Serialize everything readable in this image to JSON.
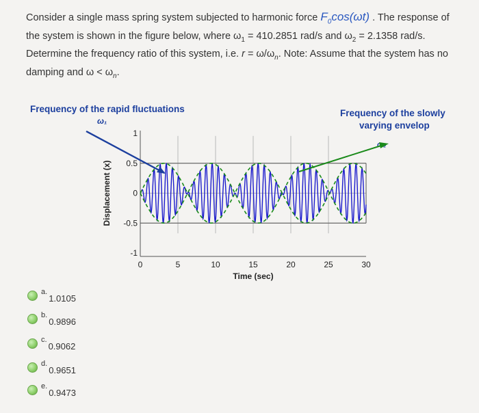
{
  "question": {
    "line1_a": "Consider a single mass spring system subjected to harmonic force ",
    "force": "F",
    "force_sub": "0",
    "force_b": "cos(ωt)",
    "line1_b": " . The response of",
    "line2": "the system is shown in the figure below, where ω",
    "w1_sub": "1",
    "line2_b": " = 410.2851 rad/s and ω",
    "w2_sub": "2",
    "line2_c": " = 2.1358 rad/s.",
    "line3_a": "Determine the frequency ratio of this system, i.e. ",
    "r_expr": "r",
    "line3_b": " = ω/ω",
    "wn_sub": "n",
    "line3_c": ". Note: Assume that the system has no",
    "line4_a": "damping and ω < ω",
    "line4_sub": "n",
    "line4_b": "."
  },
  "figure": {
    "label_left": "Frequency of the rapid fluctuations",
    "label_left_symbol": "ω₁",
    "label_right_1": "Frequency of the slowly",
    "label_right_2": "varying envelop",
    "label_right_symbol": "ω₂",
    "colors": {
      "annotation": "#1c3f9e",
      "signal": "#1a1acc",
      "envelope": "#1a8a1a",
      "arrow_right": "#1a8a1a"
    }
  },
  "chart_data": {
    "type": "line",
    "xlabel": "Time (sec)",
    "ylabel": "Displacement (x)",
    "xlim": [
      0,
      30
    ],
    "ylim": [
      -1,
      1
    ],
    "xticks": [
      "0",
      "5",
      "10",
      "15",
      "20",
      "25",
      "30"
    ],
    "yticks": [
      "1",
      "0.5",
      "0",
      "-0.5",
      "-1"
    ],
    "grid": true,
    "series": [
      {
        "description_kind": "fast oscillation",
        "form": "0.5*sin(6.283*t/12.57)*sin(2*pi*1.2*t)"
      },
      {
        "description_kind": "envelope",
        "form": "±0.5*sin(2*pi*t/12.57)"
      }
    ]
  },
  "answers": [
    {
      "letter": "a.",
      "value": "1.0105"
    },
    {
      "letter": "b.",
      "value": "0.9896"
    },
    {
      "letter": "c.",
      "value": "0.9062"
    },
    {
      "letter": "d.",
      "value": "0.9651"
    },
    {
      "letter": "e.",
      "value": "0.9473"
    }
  ]
}
